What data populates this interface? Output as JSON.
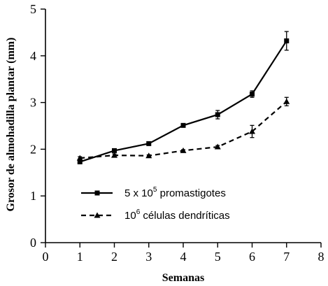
{
  "chart_data": {
    "type": "line",
    "title": "",
    "xlabel": "Semanas",
    "ylabel": "Grosor de almohadilla plantar (mm)",
    "xlim": [
      0,
      8
    ],
    "ylim": [
      0,
      5
    ],
    "x_ticks": [
      "0",
      "1",
      "2",
      "3",
      "4",
      "5",
      "6",
      "7",
      "8"
    ],
    "y_ticks": [
      "0",
      "1",
      "2",
      "3",
      "4",
      "5"
    ],
    "grid": false,
    "legend_position": "lower-center",
    "series": [
      {
        "name_base": "5 x 10",
        "name_sup": "5",
        "name_tail": " promastigotes",
        "line_style": "solid",
        "marker": "square",
        "color": "#000000",
        "x": [
          1,
          2,
          3,
          4,
          5,
          6,
          7
        ],
        "y": [
          1.73,
          1.97,
          2.12,
          2.51,
          2.74,
          3.18,
          4.32
        ],
        "err": [
          0.04,
          0.03,
          0.03,
          0.03,
          0.09,
          0.07,
          0.2
        ]
      },
      {
        "name_base": "10",
        "name_sup": "6",
        "name_tail": " células dendríticas",
        "line_style": "dashed",
        "marker": "triangle",
        "color": "#000000",
        "x": [
          1,
          2,
          3,
          4,
          5,
          6,
          7
        ],
        "y": [
          1.81,
          1.87,
          1.86,
          1.97,
          2.05,
          2.38,
          3.02
        ],
        "err": [
          0.03,
          0.03,
          0.02,
          0.02,
          0.03,
          0.13,
          0.09
        ]
      }
    ]
  }
}
